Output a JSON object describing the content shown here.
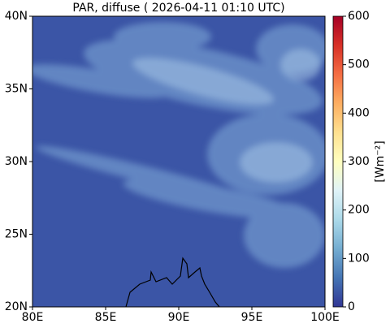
{
  "chart_data": {
    "type": "map",
    "title": "PAR, diffuse ( 2026-04-11 01:10 UTC)",
    "xlim": [
      80,
      100
    ],
    "xticks": [
      {
        "value": 80,
        "label": "80E"
      },
      {
        "value": 85,
        "label": "85E"
      },
      {
        "value": 90,
        "label": "90E"
      },
      {
        "value": 95,
        "label": "95E"
      },
      {
        "value": 100,
        "label": "100E"
      }
    ],
    "ylim": [
      20,
      40
    ],
    "yticks": [
      {
        "value": 20,
        "label": "20N"
      },
      {
        "value": 25,
        "label": "25N"
      },
      {
        "value": 30,
        "label": "30N"
      },
      {
        "value": 35,
        "label": "35N"
      },
      {
        "value": 40,
        "label": "40N"
      }
    ],
    "colorbar": {
      "lim": [
        0,
        600
      ],
      "ticks": [
        0,
        100,
        200,
        300,
        400,
        500,
        600
      ],
      "label": "[Wm⁻²]"
    }
  }
}
